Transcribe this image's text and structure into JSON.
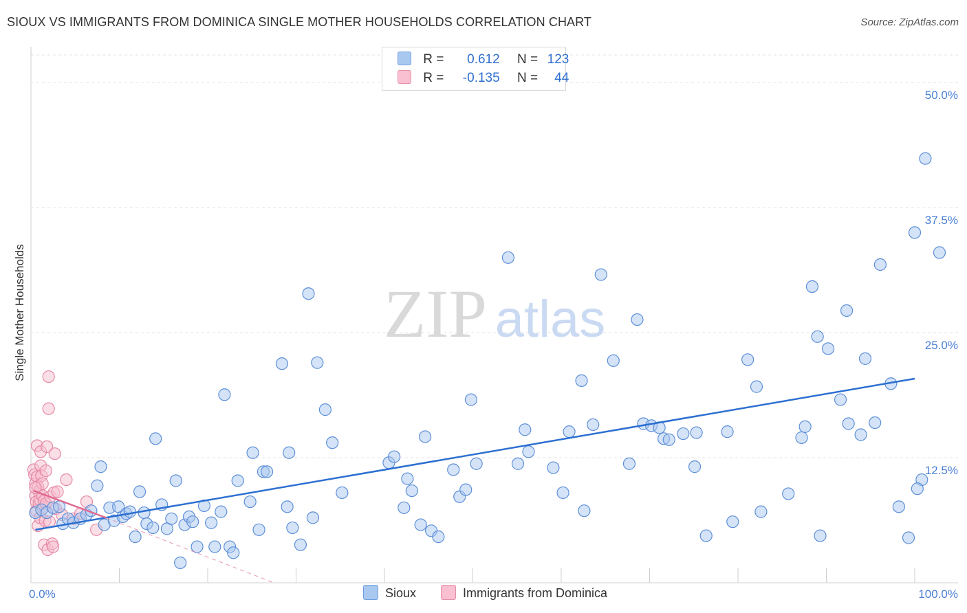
{
  "title": "SIOUX VS IMMIGRANTS FROM DOMINICA SINGLE MOTHER HOUSEHOLDS CORRELATION CHART",
  "source": "Source: ZipAtlas.com",
  "watermark": {
    "zip": "ZIP",
    "atlas": "atlas"
  },
  "legend": {
    "rows": [
      {
        "r_label": "R =",
        "r_value": "0.612",
        "n_label": "N =",
        "n_value": "123",
        "color": "#a9c8f0",
        "border": "#6f9fe0"
      },
      {
        "r_label": "R =",
        "r_value": "-0.135",
        "n_label": "N =",
        "n_value": "44",
        "color": "#f8c0d0",
        "border": "#e890aa"
      }
    ]
  },
  "bottom_legend": {
    "sioux": "Sioux",
    "dominica": "Immigrants from Dominica"
  },
  "colors": {
    "sioux_fill": "#a9c8f0",
    "sioux_stroke": "#5d8fd8",
    "sioux_line": "#2c6fd1",
    "dom_fill": "#f8bfd0",
    "dom_stroke": "#e58aa6",
    "dom_line": "#e06a92"
  },
  "chart_data": {
    "type": "scatter",
    "title": "SIOUX VS IMMIGRANTS FROM DOMINICA SINGLE MOTHER HOUSEHOLDS CORRELATION CHART",
    "xlabel": "",
    "ylabel": "Single Mother Households",
    "xlim": [
      0,
      100
    ],
    "ylim": [
      0,
      50
    ],
    "x_tick_labels": [
      "0.0%",
      "100.0%"
    ],
    "y_ticks": [
      12.5,
      25.0,
      37.5,
      50.0
    ],
    "y_tick_labels": [
      "12.5%",
      "25.0%",
      "37.5%",
      "50.0%"
    ],
    "grid": true,
    "series": [
      {
        "name": "Sioux",
        "points": [
          [
            0.5,
            7.0
          ],
          [
            1.2,
            7.3
          ],
          [
            1.8,
            7.0
          ],
          [
            2.5,
            7.5
          ],
          [
            3.2,
            7.6
          ],
          [
            3.6,
            5.9
          ],
          [
            4.2,
            6.4
          ],
          [
            4.8,
            6.0
          ],
          [
            5.6,
            6.4
          ],
          [
            6.3,
            6.8
          ],
          [
            6.8,
            7.2
          ],
          [
            7.5,
            9.7
          ],
          [
            7.9,
            11.6
          ],
          [
            8.3,
            5.8
          ],
          [
            8.9,
            7.5
          ],
          [
            9.4,
            6.2
          ],
          [
            9.9,
            7.6
          ],
          [
            10.4,
            6.6
          ],
          [
            10.8,
            6.9
          ],
          [
            11.2,
            7.1
          ],
          [
            11.8,
            4.6
          ],
          [
            12.3,
            9.1
          ],
          [
            12.8,
            7.0
          ],
          [
            13.1,
            5.9
          ],
          [
            13.8,
            5.5
          ],
          [
            14.1,
            14.4
          ],
          [
            14.8,
            7.8
          ],
          [
            15.4,
            5.4
          ],
          [
            15.9,
            6.4
          ],
          [
            16.4,
            10.2
          ],
          [
            16.9,
            2.0
          ],
          [
            17.4,
            5.8
          ],
          [
            17.9,
            6.6
          ],
          [
            18.3,
            6.1
          ],
          [
            18.8,
            3.6
          ],
          [
            19.6,
            7.7
          ],
          [
            20.4,
            6.0
          ],
          [
            20.8,
            3.6
          ],
          [
            21.5,
            7.1
          ],
          [
            21.9,
            18.8
          ],
          [
            22.5,
            3.6
          ],
          [
            22.9,
            3.0
          ],
          [
            23.4,
            10.2
          ],
          [
            24.8,
            8.1
          ],
          [
            25.1,
            13.0
          ],
          [
            25.8,
            5.3
          ],
          [
            26.3,
            11.1
          ],
          [
            26.7,
            11.1
          ],
          [
            28.4,
            21.9
          ],
          [
            29.0,
            7.6
          ],
          [
            29.2,
            13.0
          ],
          [
            29.6,
            5.5
          ],
          [
            30.5,
            3.8
          ],
          [
            31.4,
            28.9
          ],
          [
            31.9,
            6.5
          ],
          [
            32.4,
            22.0
          ],
          [
            33.3,
            17.3
          ],
          [
            34.1,
            14.0
          ],
          [
            35.2,
            9.0
          ],
          [
            40.5,
            12.0
          ],
          [
            41.1,
            12.6
          ],
          [
            42.2,
            7.5
          ],
          [
            42.6,
            10.4
          ],
          [
            43.1,
            9.2
          ],
          [
            44.1,
            5.8
          ],
          [
            44.6,
            14.6
          ],
          [
            45.3,
            5.2
          ],
          [
            46.1,
            4.6
          ],
          [
            47.8,
            11.3
          ],
          [
            48.5,
            8.6
          ],
          [
            49.2,
            9.3
          ],
          [
            49.8,
            18.3
          ],
          [
            50.4,
            11.9
          ],
          [
            54.0,
            32.5
          ],
          [
            55.1,
            11.9
          ],
          [
            55.9,
            15.3
          ],
          [
            56.3,
            13.1
          ],
          [
            59.1,
            11.5
          ],
          [
            60.2,
            9.0
          ],
          [
            60.9,
            15.1
          ],
          [
            62.3,
            20.2
          ],
          [
            62.6,
            7.2
          ],
          [
            63.6,
            15.8
          ],
          [
            64.5,
            30.8
          ],
          [
            65.9,
            22.2
          ],
          [
            67.7,
            11.9
          ],
          [
            68.6,
            26.3
          ],
          [
            69.3,
            15.9
          ],
          [
            70.2,
            15.7
          ],
          [
            71.1,
            15.5
          ],
          [
            71.6,
            14.4
          ],
          [
            72.2,
            14.3
          ],
          [
            73.8,
            14.9
          ],
          [
            75.1,
            11.6
          ],
          [
            75.3,
            15.0
          ],
          [
            76.4,
            4.7
          ],
          [
            79.4,
            6.1
          ],
          [
            81.1,
            22.3
          ],
          [
            82.1,
            19.6
          ],
          [
            82.6,
            7.1
          ],
          [
            85.7,
            8.9
          ],
          [
            87.2,
            14.5
          ],
          [
            87.6,
            15.6
          ],
          [
            88.4,
            29.6
          ],
          [
            89.0,
            24.6
          ],
          [
            89.3,
            4.7
          ],
          [
            90.2,
            23.4
          ],
          [
            91.6,
            18.3
          ],
          [
            92.3,
            27.2
          ],
          [
            92.5,
            15.9
          ],
          [
            93.9,
            14.8
          ],
          [
            94.4,
            22.4
          ],
          [
            95.5,
            16.0
          ],
          [
            96.1,
            31.8
          ],
          [
            97.3,
            19.9
          ],
          [
            98.2,
            7.6
          ],
          [
            99.3,
            4.5
          ],
          [
            100.0,
            35.0
          ],
          [
            100.8,
            10.3
          ],
          [
            101.2,
            42.4
          ],
          [
            102.8,
            33.0
          ],
          [
            100.3,
            9.4
          ],
          [
            78.8,
            15.1
          ]
        ],
        "trend": {
          "x": [
            0.5,
            100.0
          ],
          "y": [
            5.3,
            20.4
          ]
        }
      },
      {
        "name": "Immigrants from Dominica",
        "points": [
          [
            0.3,
            11.3
          ],
          [
            0.4,
            10.8
          ],
          [
            0.5,
            9.9
          ],
          [
            0.5,
            8.7
          ],
          [
            0.6,
            8.1
          ],
          [
            0.6,
            7.2
          ],
          [
            0.7,
            10.6
          ],
          [
            0.7,
            13.7
          ],
          [
            0.8,
            9.6
          ],
          [
            0.8,
            5.7
          ],
          [
            0.9,
            9.1
          ],
          [
            0.9,
            7.9
          ],
          [
            1.0,
            8.3
          ],
          [
            1.0,
            6.5
          ],
          [
            1.1,
            13.1
          ],
          [
            1.1,
            11.7
          ],
          [
            1.2,
            10.7
          ],
          [
            1.3,
            9.9
          ],
          [
            1.3,
            8.7
          ],
          [
            1.4,
            7.5
          ],
          [
            1.5,
            8.2
          ],
          [
            1.5,
            3.8
          ],
          [
            1.6,
            6.2
          ],
          [
            1.7,
            11.2
          ],
          [
            1.7,
            7.9
          ],
          [
            1.8,
            13.6
          ],
          [
            1.9,
            3.3
          ],
          [
            2.0,
            17.4
          ],
          [
            2.0,
            20.6
          ],
          [
            2.1,
            6.1
          ],
          [
            2.2,
            8.6
          ],
          [
            2.4,
            3.9
          ],
          [
            2.5,
            3.6
          ],
          [
            2.6,
            9.0
          ],
          [
            2.7,
            12.9
          ],
          [
            2.8,
            7.4
          ],
          [
            3.0,
            9.1
          ],
          [
            3.5,
            6.8
          ],
          [
            4.0,
            10.3
          ],
          [
            4.8,
            6.4
          ],
          [
            5.6,
            6.9
          ],
          [
            6.3,
            8.1
          ],
          [
            7.4,
            5.3
          ],
          [
            0.5,
            9.5
          ]
        ],
        "trend": {
          "x": [
            0.3,
            8.5
          ],
          "y": [
            9.2,
            6.5
          ]
        },
        "trend_extension": {
          "x": [
            8.5,
            27.5
          ],
          "y": [
            6.5,
            0.0
          ]
        }
      }
    ]
  }
}
